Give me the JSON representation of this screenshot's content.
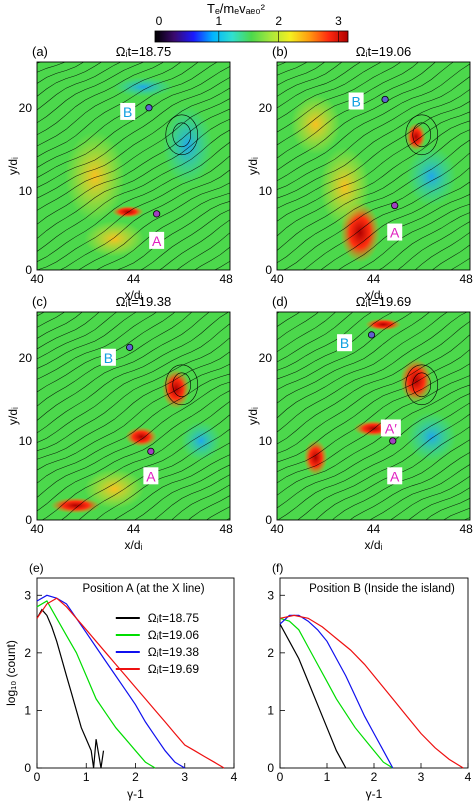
{
  "colorbar": {
    "title": "Tₑ/mₑvₐₑ₀²",
    "ticks": [
      "0",
      "1",
      "2",
      "3"
    ],
    "stops": [
      "#000000",
      "#3a0a6e",
      "#1a1aff",
      "#00b4ff",
      "#30e0d0",
      "#4cd84c",
      "#a8e83c",
      "#f4f020",
      "#ff9a10",
      "#ff2a10",
      "#b00000"
    ]
  },
  "panels": [
    {
      "tag": "(a)",
      "time": "Ωᵢt=18.75",
      "labels": [
        "A",
        "B"
      ]
    },
    {
      "tag": "(b)",
      "time": "Ωᵢt=19.06",
      "labels": [
        "A",
        "B"
      ]
    },
    {
      "tag": "(c)",
      "time": "Ωᵢt=19.38",
      "labels": [
        "A",
        "B"
      ]
    },
    {
      "tag": "(d)",
      "time": "Ωᵢt=19.69",
      "labels": [
        "A",
        "A′",
        "B"
      ]
    }
  ],
  "map_axes": {
    "xlabel": "x/dᵢ",
    "ylabel": "y/dᵢ",
    "xticks": [
      "40",
      "44",
      "48"
    ],
    "yticks": [
      "0",
      "10",
      "20"
    ]
  },
  "chart_data": [
    {
      "type": "line",
      "tag": "(e)",
      "title": "Position A (at the X line)",
      "xlabel": "γ-1",
      "ylabel": "log₁₀ (count)",
      "xlim": [
        0,
        4
      ],
      "ylim": [
        0,
        3.3
      ],
      "xticks": [
        "0",
        "1",
        "2",
        "3",
        "4"
      ],
      "yticks": [
        "0",
        "1",
        "2",
        "3"
      ],
      "legend": "top-right",
      "series": [
        {
          "name": "Ωᵢt=18.75",
          "color": "#000000",
          "x": [
            0,
            0.1,
            0.2,
            0.3,
            0.4,
            0.5,
            0.6,
            0.7,
            0.8,
            0.9,
            1.0,
            1.1,
            1.15,
            1.2,
            1.3,
            1.35
          ],
          "y": [
            2.6,
            2.75,
            2.65,
            2.45,
            2.2,
            1.9,
            1.6,
            1.3,
            1.0,
            0.7,
            0.5,
            0.3,
            0.0,
            0.5,
            0.0,
            0.3
          ]
        },
        {
          "name": "Ωᵢt=19.06",
          "color": "#00dd00",
          "x": [
            0,
            0.2,
            0.4,
            0.6,
            0.8,
            1.0,
            1.2,
            1.4,
            1.6,
            1.8,
            2.0,
            2.2,
            2.4
          ],
          "y": [
            2.8,
            2.9,
            2.6,
            2.3,
            2.0,
            1.6,
            1.2,
            0.95,
            0.7,
            0.5,
            0.3,
            0.1,
            0.0
          ]
        },
        {
          "name": "Ωᵢt=19.38",
          "color": "#1010ee",
          "x": [
            0,
            0.2,
            0.4,
            0.6,
            0.8,
            1.0,
            1.2,
            1.4,
            1.6,
            1.8,
            2.0,
            2.2,
            2.4,
            2.6,
            2.8,
            3.0
          ],
          "y": [
            2.9,
            3.0,
            2.95,
            2.85,
            2.6,
            2.35,
            2.1,
            1.85,
            1.6,
            1.35,
            1.1,
            0.8,
            0.55,
            0.3,
            0.1,
            0.0
          ]
        },
        {
          "name": "Ωᵢt=19.69",
          "color": "#ee1010",
          "x": [
            0,
            0.2,
            0.4,
            0.6,
            0.8,
            1.0,
            1.2,
            1.4,
            1.6,
            1.8,
            2.0,
            2.2,
            2.4,
            2.6,
            2.8,
            3.0,
            3.2,
            3.4,
            3.6,
            3.8
          ],
          "y": [
            2.6,
            2.85,
            2.95,
            2.8,
            2.6,
            2.4,
            2.2,
            2.0,
            1.8,
            1.6,
            1.4,
            1.2,
            1.0,
            0.8,
            0.6,
            0.4,
            0.3,
            0.2,
            0.1,
            0.0
          ]
        }
      ]
    },
    {
      "type": "line",
      "tag": "(f)",
      "title": "Position B (Inside the island)",
      "xlabel": "γ-1",
      "ylabel": "",
      "xlim": [
        0,
        4
      ],
      "ylim": [
        0,
        3.3
      ],
      "xticks": [
        "0",
        "1",
        "2",
        "3",
        "4"
      ],
      "yticks": [
        "0",
        "1",
        "2",
        "3"
      ],
      "series": [
        {
          "name": "Ωᵢt=18.75",
          "color": "#000000",
          "x": [
            0,
            0.2,
            0.4,
            0.6,
            0.8,
            1.0,
            1.2,
            1.4
          ],
          "y": [
            2.5,
            2.2,
            1.9,
            1.5,
            1.1,
            0.7,
            0.3,
            0.0
          ]
        },
        {
          "name": "Ωᵢt=19.06",
          "color": "#00dd00",
          "x": [
            0,
            0.2,
            0.4,
            0.6,
            0.8,
            1.0,
            1.2,
            1.4,
            1.6,
            1.8,
            2.0,
            2.2,
            2.4
          ],
          "y": [
            2.6,
            2.55,
            2.4,
            2.1,
            1.8,
            1.5,
            1.2,
            0.95,
            0.7,
            0.5,
            0.3,
            0.1,
            0.0
          ]
        },
        {
          "name": "Ωᵢt=19.38",
          "color": "#1010ee",
          "x": [
            0,
            0.2,
            0.4,
            0.6,
            0.8,
            1.0,
            1.2,
            1.4,
            1.6,
            1.8,
            2.0,
            2.2,
            2.4
          ],
          "y": [
            2.5,
            2.65,
            2.65,
            2.55,
            2.4,
            2.2,
            1.9,
            1.6,
            1.25,
            0.9,
            0.6,
            0.3,
            0.0
          ]
        },
        {
          "name": "Ωᵢt=19.69",
          "color": "#ee1010",
          "x": [
            0,
            0.3,
            0.6,
            0.9,
            1.2,
            1.5,
            1.8,
            2.1,
            2.4,
            2.7,
            3.0,
            3.3,
            3.6,
            3.9
          ],
          "y": [
            2.6,
            2.65,
            2.6,
            2.45,
            2.25,
            2.05,
            1.8,
            1.5,
            1.2,
            0.9,
            0.6,
            0.35,
            0.15,
            0.0
          ]
        }
      ]
    }
  ]
}
